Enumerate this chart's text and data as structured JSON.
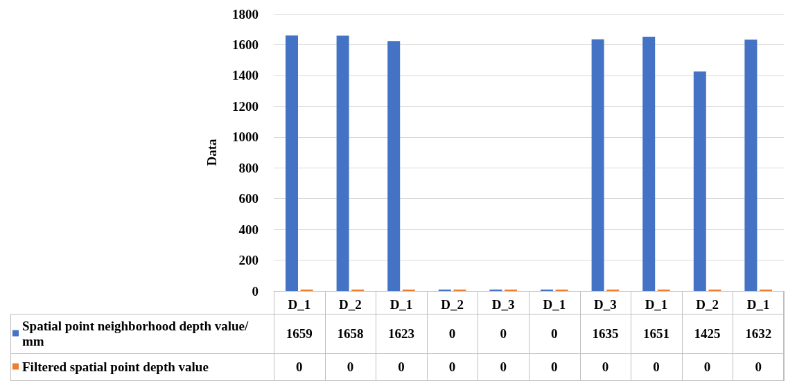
{
  "chart_data": {
    "type": "bar",
    "ylabel": "Data",
    "categories": [
      "D_1",
      "D_2",
      "D_1",
      "D_2",
      "D_3",
      "D_1",
      "D_3",
      "D_1",
      "D_2",
      "D_1"
    ],
    "series": [
      {
        "name": "Spatial point neighborhood depth value/mm",
        "color": "#4472c4",
        "values": [
          1659,
          1658,
          1623,
          0,
          0,
          0,
          1635,
          1651,
          1425,
          1632
        ]
      },
      {
        "name": "Filtered spatial point depth value",
        "color": "#ed7d31",
        "values": [
          0,
          0,
          0,
          0,
          0,
          0,
          0,
          0,
          0,
          0
        ]
      }
    ],
    "ylim": [
      0,
      1800
    ],
    "yticks": [
      0,
      200,
      400,
      600,
      800,
      1000,
      1200,
      1400,
      1600,
      1800
    ],
    "grid": "y",
    "legend": "bottom",
    "data_labels": true
  }
}
